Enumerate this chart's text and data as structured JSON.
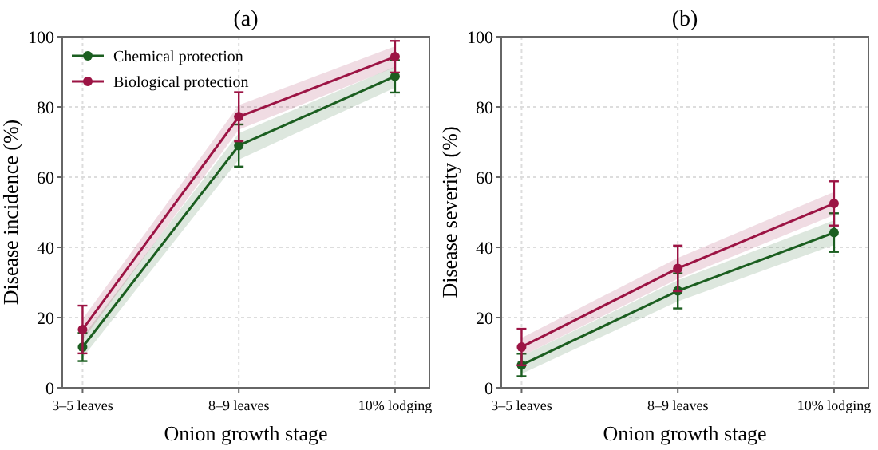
{
  "chart_data": [
    {
      "type": "line",
      "title": "(a)",
      "xlabel": "Onion growth stage",
      "ylabel": "Disease incidence (%)",
      "categories": [
        "3–5 leaves",
        "8–9 leaves",
        "10% lodging"
      ],
      "ylim": [
        0,
        100
      ],
      "yticks": [
        0,
        20,
        40,
        60,
        80,
        100
      ],
      "grid": true,
      "legend": "top left",
      "marker": "circle",
      "series": [
        {
          "name": "Chemical protection",
          "color": "#1b5e20",
          "values": [
            11.6,
            69,
            88.7
          ],
          "errors": [
            4,
            6,
            4.6
          ],
          "lower": [
            8.6,
            65,
            85.5
          ],
          "upper": [
            14.6,
            72.5,
            91.5
          ]
        },
        {
          "name": "Biological protection",
          "color": "#9c1444",
          "values": [
            16.6,
            77.2,
            94.3
          ],
          "errors": [
            6.8,
            7,
            4.5
          ],
          "lower": [
            13.6,
            73.5,
            91.3
          ],
          "upper": [
            19.6,
            80.5,
            97.3
          ]
        }
      ]
    },
    {
      "type": "line",
      "title": "(b)",
      "xlabel": "Onion growth stage",
      "ylabel": "Disease severity (%)",
      "categories": [
        "3–5 leaves",
        "8–9 leaves",
        "10% lodging"
      ],
      "ylim": [
        0,
        100
      ],
      "yticks": [
        0,
        20,
        40,
        60,
        80,
        100
      ],
      "grid": true,
      "legend": false,
      "marker": "circle",
      "series": [
        {
          "color": "#1b5e20",
          "values": [
            6.5,
            27.6,
            44.2
          ],
          "errors": [
            3.2,
            5,
            5.5
          ],
          "lower": [
            4,
            24.6,
            40.7
          ],
          "upper": [
            9,
            30.6,
            47.7
          ]
        },
        {
          "color": "#9c1444",
          "values": [
            11.6,
            34,
            52.5
          ],
          "errors": [
            5.2,
            6.5,
            6.3
          ],
          "lower": [
            9,
            31,
            49.2
          ],
          "upper": [
            14.2,
            37,
            55.8
          ]
        }
      ]
    }
  ]
}
